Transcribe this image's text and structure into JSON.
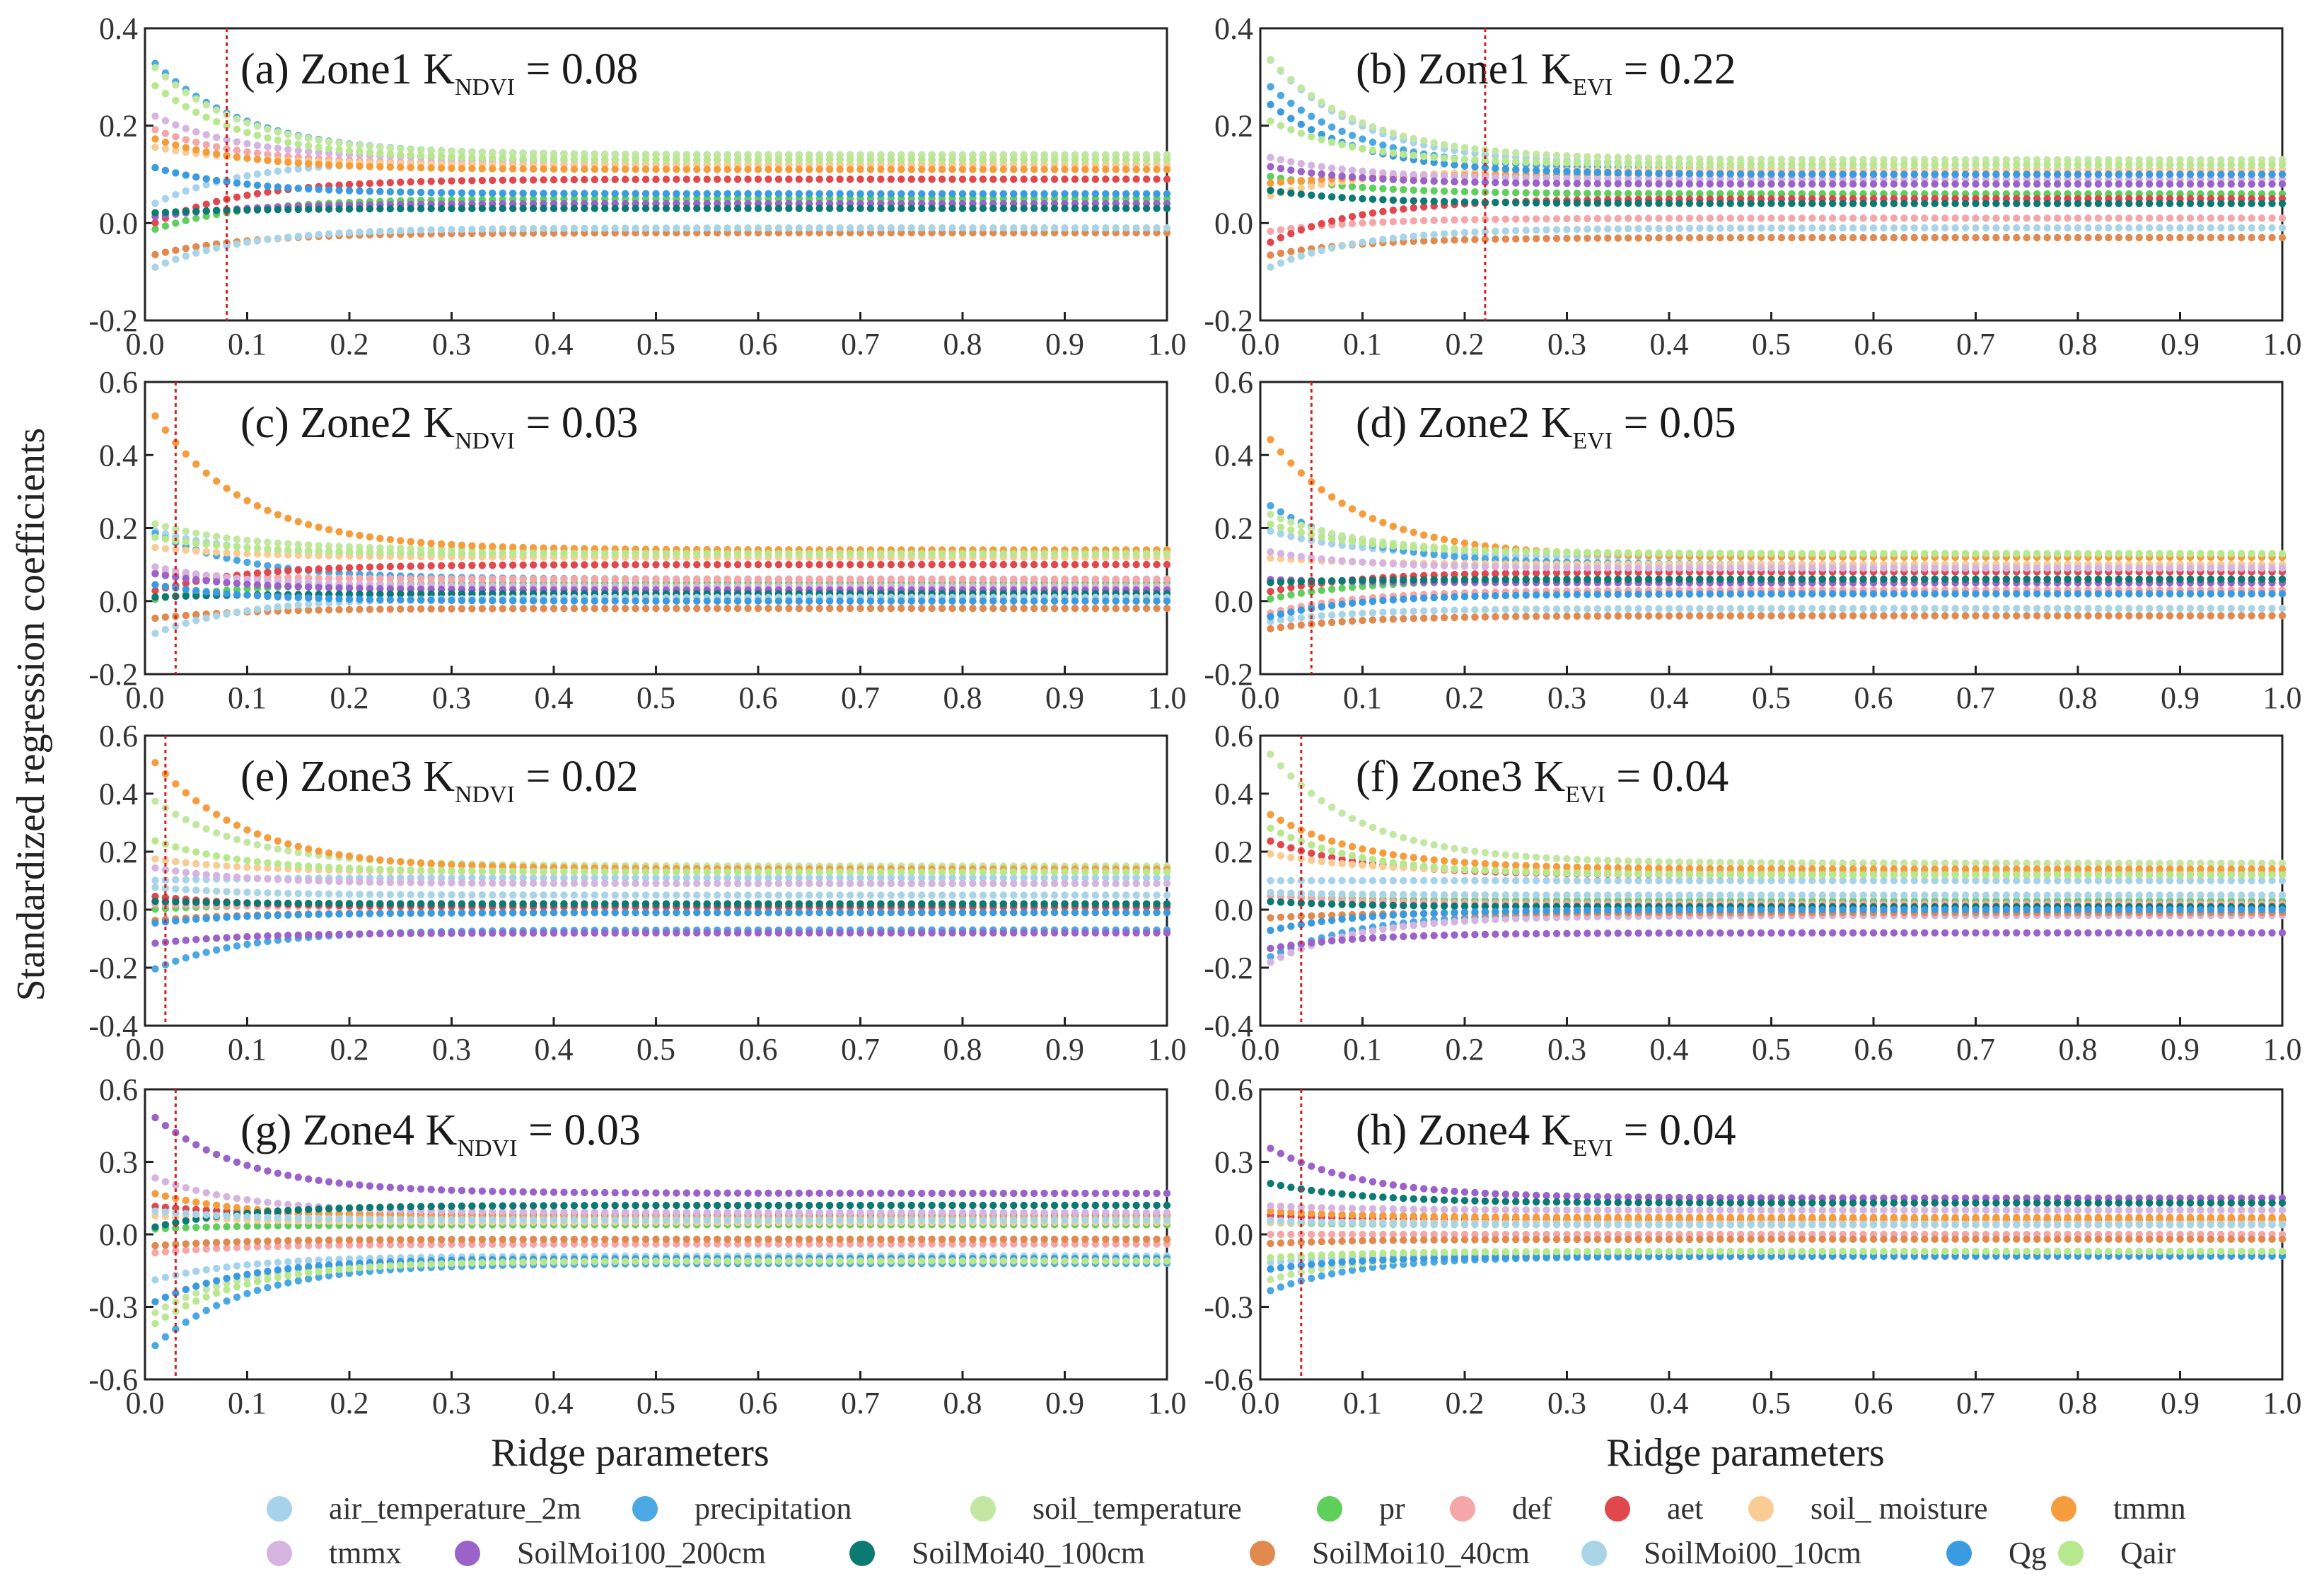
{
  "figure": {
    "ylabel": "Standardized regression coefficients",
    "xlabels": [
      "Ridge parameters",
      "Ridge parameters"
    ]
  },
  "legend": [
    {
      "label": "air_temperature_2m",
      "color": "#a6d2ec"
    },
    {
      "label": "precipitation",
      "color": "#4ba8e2"
    },
    {
      "label": "soil_temperature",
      "color": "#c3e6a2"
    },
    {
      "label": "pr",
      "color": "#5fcf5c"
    },
    {
      "label": "def",
      "color": "#f4a6a8"
    },
    {
      "label": "aet",
      "color": "#e0484e"
    },
    {
      "label": "soil_ moisture",
      "color": "#f8cc94"
    },
    {
      "label": "tmmn",
      "color": "#f59d3d"
    },
    {
      "label": "tmmx",
      "color": "#d6b4e0"
    },
    {
      "label": "SoilMoi100_200cm",
      "color": "#9b62c9"
    },
    {
      "label": "SoilMoi40_100cm",
      "color": "#0b7a72"
    },
    {
      "label": "SoilMoi10_40cm",
      "color": "#e08a50"
    },
    {
      "label": "SoilMoi00_10cm",
      "color": "#a9d4e6"
    },
    {
      "label": "Qg",
      "color": "#3a9be0"
    },
    {
      "label": "Qair",
      "color": "#b8e88e"
    }
  ],
  "chart_data": [
    {
      "type": "scatter",
      "id": "a",
      "label_prefix": "(a) Zone1 K",
      "label_sub": "NDVI",
      "label_suffix": " = 0.08",
      "k": 0.08,
      "xlim": [
        0,
        1
      ],
      "ylim": [
        -0.2,
        0.4
      ],
      "xticks": [
        "0.0",
        "0.1",
        "0.2",
        "0.3",
        "0.4",
        "0.5",
        "0.6",
        "0.7",
        "0.8",
        "0.9",
        "1.0"
      ],
      "yticks": [
        "-0.2",
        "0.0",
        "0.2",
        "0.4"
      ],
      "ytick_values": [
        -0.2,
        0.0,
        0.2,
        0.4
      ],
      "series": [
        {
          "name": "air_temperature_2m",
          "start": 0.03,
          "end": 0.13
        },
        {
          "name": "precipitation",
          "start": 0.35,
          "end": 0.14
        },
        {
          "name": "soil_temperature",
          "start": 0.34,
          "end": 0.14
        },
        {
          "name": "pr",
          "start": -0.02,
          "end": 0.05
        },
        {
          "name": "def",
          "start": 0.2,
          "end": 0.12
        },
        {
          "name": "aet",
          "start": -0.01,
          "end": 0.09
        },
        {
          "name": "soil_ moisture",
          "start": 0.16,
          "end": 0.12
        },
        {
          "name": "tmmn",
          "start": 0.18,
          "end": 0.11
        },
        {
          "name": "tmmx",
          "start": 0.23,
          "end": 0.13
        },
        {
          "name": "SoilMoi100_200cm",
          "start": 0.01,
          "end": 0.04
        },
        {
          "name": "SoilMoi40_100cm",
          "start": 0.02,
          "end": 0.03
        },
        {
          "name": "SoilMoi10_40cm",
          "start": -0.07,
          "end": -0.02
        },
        {
          "name": "SoilMoi00_10cm",
          "start": -0.1,
          "end": -0.01
        },
        {
          "name": "Qg",
          "start": 0.12,
          "end": 0.06
        },
        {
          "name": "Qair",
          "start": 0.3,
          "end": 0.13
        }
      ]
    },
    {
      "type": "scatter",
      "id": "b",
      "label_prefix": "(b) Zone1 K",
      "label_sub": "EVI",
      "label_suffix": " = 0.22",
      "k": 0.22,
      "xlim": [
        0,
        1
      ],
      "ylim": [
        -0.2,
        0.4
      ],
      "xticks": [
        "0.0",
        "0.1",
        "0.2",
        "0.3",
        "0.4",
        "0.5",
        "0.6",
        "0.7",
        "0.8",
        "0.9",
        "1.0"
      ],
      "yticks": [
        "-0.2",
        "0.0",
        "0.2",
        "0.4"
      ],
      "ytick_values": [
        -0.2,
        0.0,
        0.2,
        0.4
      ],
      "series": [
        {
          "name": "air_temperature_2m",
          "start": 0.36,
          "end": 0.12
        },
        {
          "name": "precipitation",
          "start": 0.3,
          "end": 0.11
        },
        {
          "name": "soil_temperature",
          "start": 0.36,
          "end": 0.13
        },
        {
          "name": "pr",
          "start": 0.1,
          "end": 0.06
        },
        {
          "name": "def",
          "start": -0.02,
          "end": 0.01
        },
        {
          "name": "aet",
          "start": -0.05,
          "end": 0.05
        },
        {
          "name": "soil_ moisture",
          "start": 0.05,
          "end": 0.11
        },
        {
          "name": "tmmn",
          "start": 0.08,
          "end": 0.1
        },
        {
          "name": "tmmx",
          "start": 0.14,
          "end": 0.09
        },
        {
          "name": "SoilMoi100_200cm",
          "start": 0.12,
          "end": 0.08
        },
        {
          "name": "SoilMoi40_100cm",
          "start": 0.07,
          "end": 0.04
        },
        {
          "name": "SoilMoi10_40cm",
          "start": -0.07,
          "end": -0.03
        },
        {
          "name": "SoilMoi00_10cm",
          "start": -0.1,
          "end": -0.01
        },
        {
          "name": "Qg",
          "start": 0.26,
          "end": 0.1
        },
        {
          "name": "Qair",
          "start": 0.22,
          "end": 0.12
        }
      ]
    },
    {
      "type": "scatter",
      "id": "c",
      "label_prefix": "(c) Zone2 K",
      "label_sub": "NDVI",
      "label_suffix": " = 0.03",
      "k": 0.03,
      "xlim": [
        0,
        1
      ],
      "ylim": [
        -0.2,
        0.6
      ],
      "xticks": [
        "0.0",
        "0.1",
        "0.2",
        "0.3",
        "0.4",
        "0.5",
        "0.6",
        "0.7",
        "0.8",
        "0.9",
        "1.0"
      ],
      "yticks": [
        "-0.2",
        "0.0",
        "0.2",
        "0.4",
        "0.6"
      ],
      "ytick_values": [
        -0.2,
        0.0,
        0.2,
        0.4,
        0.6
      ],
      "series": [
        {
          "name": "air_temperature_2m",
          "start": 0.2,
          "end": 0.12
        },
        {
          "name": "precipitation",
          "start": 0.2,
          "end": 0.06
        },
        {
          "name": "soil_temperature",
          "start": 0.22,
          "end": 0.14
        },
        {
          "name": "pr",
          "start": 0.0,
          "end": 0.05
        },
        {
          "name": "def",
          "start": 0.08,
          "end": 0.06
        },
        {
          "name": "aet",
          "start": 0.02,
          "end": 0.1
        },
        {
          "name": "soil_ moisture",
          "start": 0.15,
          "end": 0.12
        },
        {
          "name": "tmmn",
          "start": 0.55,
          "end": 0.14
        },
        {
          "name": "tmmx",
          "start": 0.1,
          "end": 0.04
        },
        {
          "name": "SoilMoi100_200cm",
          "start": 0.08,
          "end": 0.03
        },
        {
          "name": "SoilMoi40_100cm",
          "start": 0.01,
          "end": 0.02
        },
        {
          "name": "SoilMoi10_40cm",
          "start": -0.05,
          "end": -0.02
        },
        {
          "name": "SoilMoi00_10cm",
          "start": -0.1,
          "end": 0.01
        },
        {
          "name": "Qg",
          "start": 0.05,
          "end": 0.0
        },
        {
          "name": "Qair",
          "start": 0.18,
          "end": 0.13
        }
      ]
    },
    {
      "type": "scatter",
      "id": "d",
      "label_prefix": "(d) Zone2 K",
      "label_sub": "EVI",
      "label_suffix": " = 0.05",
      "k": 0.05,
      "xlim": [
        0,
        1
      ],
      "ylim": [
        -0.2,
        0.6
      ],
      "xticks": [
        "0.0",
        "0.1",
        "0.2",
        "0.3",
        "0.4",
        "0.5",
        "0.6",
        "0.7",
        "0.8",
        "0.9",
        "1.0"
      ],
      "yticks": [
        "-0.2",
        "0.0",
        "0.2",
        "0.4",
        "0.6"
      ],
      "ytick_values": [
        -0.2,
        0.0,
        0.2,
        0.4,
        0.6
      ],
      "series": [
        {
          "name": "air_temperature_2m",
          "start": 0.2,
          "end": 0.12
        },
        {
          "name": "precipitation",
          "start": 0.28,
          "end": 0.1
        },
        {
          "name": "soil_temperature",
          "start": 0.25,
          "end": 0.13
        },
        {
          "name": "pr",
          "start": 0.0,
          "end": 0.06
        },
        {
          "name": "def",
          "start": -0.04,
          "end": 0.03
        },
        {
          "name": "aet",
          "start": 0.02,
          "end": 0.08
        },
        {
          "name": "soil_ moisture",
          "start": 0.12,
          "end": 0.1
        },
        {
          "name": "tmmn",
          "start": 0.48,
          "end": 0.12
        },
        {
          "name": "tmmx",
          "start": 0.14,
          "end": 0.09
        },
        {
          "name": "SoilMoi100_200cm",
          "start": 0.06,
          "end": 0.05
        },
        {
          "name": "SoilMoi40_100cm",
          "start": 0.05,
          "end": 0.06
        },
        {
          "name": "SoilMoi10_40cm",
          "start": -0.08,
          "end": -0.04
        },
        {
          "name": "SoilMoi00_10cm",
          "start": -0.06,
          "end": -0.02
        },
        {
          "name": "Qg",
          "start": -0.05,
          "end": 0.02
        },
        {
          "name": "Qair",
          "start": 0.22,
          "end": 0.13
        }
      ]
    },
    {
      "type": "scatter",
      "id": "e",
      "label_prefix": "(e) Zone3 K",
      "label_sub": "NDVI",
      "label_suffix": " = 0.02",
      "k": 0.02,
      "xlim": [
        0,
        1
      ],
      "ylim": [
        -0.4,
        0.6
      ],
      "xticks": [
        "0.0",
        "0.1",
        "0.2",
        "0.3",
        "0.4",
        "0.5",
        "0.6",
        "0.7",
        "0.8",
        "0.9",
        "1.0"
      ],
      "yticks": [
        "-0.4",
        "-0.2",
        "0.0",
        "0.2",
        "0.4",
        "0.6"
      ],
      "ytick_values": [
        -0.4,
        -0.2,
        0.0,
        0.2,
        0.4,
        0.6
      ],
      "series": [
        {
          "name": "air_temperature_2m",
          "start": 0.1,
          "end": 0.11
        },
        {
          "name": "precipitation",
          "start": -0.22,
          "end": -0.07
        },
        {
          "name": "soil_temperature",
          "start": 0.4,
          "end": 0.15
        },
        {
          "name": "pr",
          "start": 0.0,
          "end": 0.02
        },
        {
          "name": "def",
          "start": 0.02,
          "end": 0.01
        },
        {
          "name": "aet",
          "start": 0.05,
          "end": 0.01
        },
        {
          "name": "soil_ moisture",
          "start": 0.18,
          "end": 0.13
        },
        {
          "name": "tmmn",
          "start": 0.55,
          "end": 0.14
        },
        {
          "name": "tmmx",
          "start": 0.15,
          "end": 0.09
        },
        {
          "name": "SoilMoi100_200cm",
          "start": -0.12,
          "end": -0.08
        },
        {
          "name": "SoilMoi40_100cm",
          "start": 0.03,
          "end": 0.02
        },
        {
          "name": "SoilMoi10_40cm",
          "start": -0.04,
          "end": -0.01
        },
        {
          "name": "SoilMoi00_10cm",
          "start": 0.08,
          "end": 0.05
        },
        {
          "name": "Qg",
          "start": -0.05,
          "end": -0.01
        },
        {
          "name": "Qair",
          "start": 0.25,
          "end": 0.13
        }
      ]
    },
    {
      "type": "scatter",
      "id": "f",
      "label_prefix": "(f) Zone3 K",
      "label_sub": "EVI",
      "label_suffix": " = 0.04",
      "k": 0.04,
      "xlim": [
        0,
        1
      ],
      "ylim": [
        -0.4,
        0.6
      ],
      "xticks": [
        "0.0",
        "0.1",
        "0.2",
        "0.3",
        "0.4",
        "0.5",
        "0.6",
        "0.7",
        "0.8",
        "0.9",
        "1.0"
      ],
      "yticks": [
        "-0.4",
        "-0.2",
        "0.0",
        "0.2",
        "0.4",
        "0.6"
      ],
      "ytick_values": [
        -0.4,
        -0.2,
        0.0,
        0.2,
        0.4,
        0.6
      ],
      "series": [
        {
          "name": "air_temperature_2m",
          "start": 0.1,
          "end": 0.1
        },
        {
          "name": "precipitation",
          "start": -0.18,
          "end": -0.01
        },
        {
          "name": "soil_temperature",
          "start": 0.58,
          "end": 0.16
        },
        {
          "name": "pr",
          "start": 0.05,
          "end": 0.03
        },
        {
          "name": "def",
          "start": 0.05,
          "end": 0.02
        },
        {
          "name": "aet",
          "start": 0.25,
          "end": 0.12
        },
        {
          "name": "soil_ moisture",
          "start": 0.2,
          "end": 0.13
        },
        {
          "name": "tmmn",
          "start": 0.35,
          "end": 0.14
        },
        {
          "name": "tmmx",
          "start": -0.2,
          "end": -0.02
        },
        {
          "name": "SoilMoi100_200cm",
          "start": -0.14,
          "end": -0.08
        },
        {
          "name": "SoilMoi40_100cm",
          "start": 0.03,
          "end": 0.01
        },
        {
          "name": "SoilMoi10_40cm",
          "start": -0.03,
          "end": -0.01
        },
        {
          "name": "SoilMoi00_10cm",
          "start": 0.06,
          "end": 0.05
        },
        {
          "name": "Qg",
          "start": -0.08,
          "end": 0.0
        },
        {
          "name": "Qair",
          "start": 0.3,
          "end": 0.12
        }
      ]
    },
    {
      "type": "scatter",
      "id": "g",
      "label_prefix": "(g) Zone4 K",
      "label_sub": "NDVI",
      "label_suffix": " = 0.03",
      "k": 0.03,
      "xlim": [
        0,
        1
      ],
      "ylim": [
        -0.6,
        0.6
      ],
      "xticks": [
        "0.0",
        "0.1",
        "0.2",
        "0.3",
        "0.4",
        "0.5",
        "0.6",
        "0.7",
        "0.8",
        "0.9",
        "1.0"
      ],
      "yticks": [
        "-0.6",
        "-0.3",
        "0.0",
        "0.3",
        "0.6"
      ],
      "ytick_values": [
        -0.6,
        -0.3,
        0.0,
        0.3,
        0.6
      ],
      "series": [
        {
          "name": "air_temperature_2m",
          "start": -0.2,
          "end": -0.09
        },
        {
          "name": "precipitation",
          "start": -0.5,
          "end": -0.12
        },
        {
          "name": "soil_temperature",
          "start": -0.35,
          "end": -0.1
        },
        {
          "name": "pr",
          "start": 0.02,
          "end": 0.04
        },
        {
          "name": "def",
          "start": -0.08,
          "end": -0.04
        },
        {
          "name": "aet",
          "start": 0.12,
          "end": 0.08
        },
        {
          "name": "soil_ moisture",
          "start": 0.08,
          "end": 0.05
        },
        {
          "name": "tmmn",
          "start": 0.18,
          "end": 0.07
        },
        {
          "name": "tmmx",
          "start": 0.25,
          "end": 0.09
        },
        {
          "name": "SoilMoi100_200cm",
          "start": 0.52,
          "end": 0.17
        },
        {
          "name": "SoilMoi40_100cm",
          "start": 0.02,
          "end": 0.12
        },
        {
          "name": "SoilMoi10_40cm",
          "start": -0.05,
          "end": -0.02
        },
        {
          "name": "SoilMoi00_10cm",
          "start": 0.1,
          "end": 0.06
        },
        {
          "name": "Qg",
          "start": -0.3,
          "end": -0.1
        },
        {
          "name": "Qair",
          "start": -0.4,
          "end": -0.11
        }
      ]
    },
    {
      "type": "scatter",
      "id": "h",
      "label_prefix": "(h) Zone4 K",
      "label_sub": "EVI",
      "label_suffix": " = 0.04",
      "k": 0.04,
      "xlim": [
        0,
        1
      ],
      "ylim": [
        -0.6,
        0.6
      ],
      "xticks": [
        "0.0",
        "0.1",
        "0.2",
        "0.3",
        "0.4",
        "0.5",
        "0.6",
        "0.7",
        "0.8",
        "0.9",
        "1.0"
      ],
      "yticks": [
        "-0.6",
        "-0.3",
        "0.0",
        "0.3",
        "0.6"
      ],
      "ytick_values": [
        -0.6,
        -0.3,
        0.0,
        0.3,
        0.6
      ],
      "series": [
        {
          "name": "air_temperature_2m",
          "start": -0.12,
          "end": -0.08
        },
        {
          "name": "precipitation",
          "start": -0.25,
          "end": -0.09
        },
        {
          "name": "soil_temperature",
          "start": -0.2,
          "end": -0.08
        },
        {
          "name": "pr",
          "start": 0.05,
          "end": 0.04
        },
        {
          "name": "def",
          "start": 0.0,
          "end": 0.0
        },
        {
          "name": "aet",
          "start": 0.08,
          "end": 0.06
        },
        {
          "name": "soil_ moisture",
          "start": 0.05,
          "end": 0.05
        },
        {
          "name": "tmmn",
          "start": 0.1,
          "end": 0.07
        },
        {
          "name": "tmmx",
          "start": 0.12,
          "end": 0.1
        },
        {
          "name": "SoilMoi100_200cm",
          "start": 0.38,
          "end": 0.15
        },
        {
          "name": "SoilMoi40_100cm",
          "start": 0.22,
          "end": 0.13
        },
        {
          "name": "SoilMoi10_40cm",
          "start": -0.04,
          "end": -0.02
        },
        {
          "name": "SoilMoi00_10cm",
          "start": 0.06,
          "end": 0.04
        },
        {
          "name": "Qg",
          "start": -0.15,
          "end": -0.09
        },
        {
          "name": "Qair",
          "start": -0.1,
          "end": -0.07
        }
      ]
    }
  ]
}
